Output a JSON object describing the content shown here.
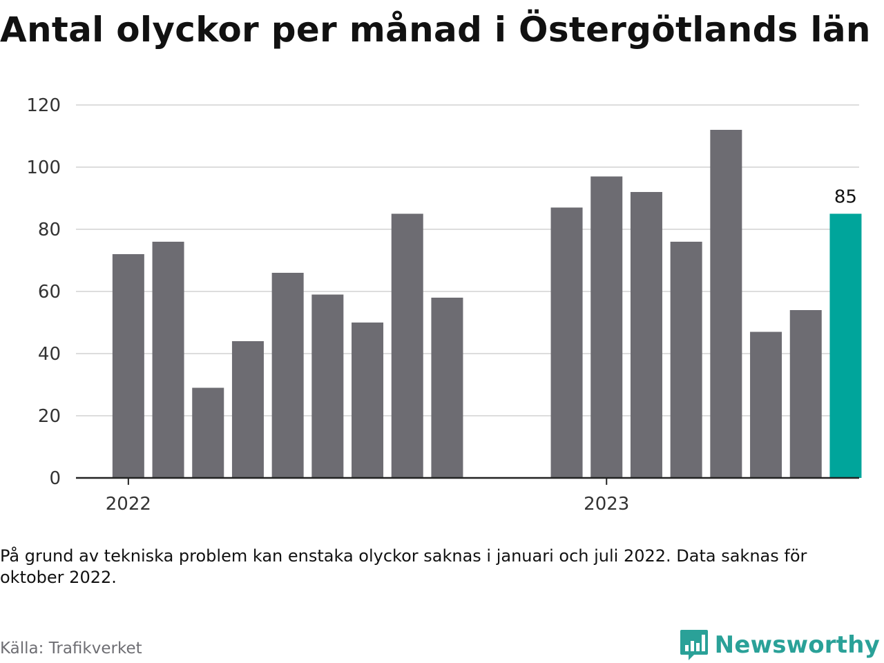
{
  "title": "Antal olyckor per månad i Östergötlands län",
  "note": "På grund av tekniska problem kan enstaka olyckor saknas i januari och juli 2022. Data saknas för oktober 2022.",
  "source": "Källa: Trafikverket",
  "brand": {
    "name": "Newsworthy",
    "logo_icon": "bar-chart-speech-bubble-icon"
  },
  "colors": {
    "bar": "#6d6c72",
    "highlight": "#00a59b",
    "grid": "#dddddd",
    "axis": "#222222"
  },
  "chart_data": {
    "type": "bar",
    "categories": [
      "2022-01",
      "2022-02",
      "2022-03",
      "2022-04",
      "2022-05",
      "2022-06",
      "2022-07",
      "2022-08",
      "2022-09",
      "2022-10",
      "2022-11",
      "2022-12",
      "2023-01",
      "2023-02",
      "2023-03",
      "2023-04",
      "2023-05",
      "2023-06",
      "2023-07"
    ],
    "values": [
      72,
      76,
      29,
      44,
      66,
      59,
      50,
      85,
      58,
      null,
      null,
      87,
      97,
      92,
      76,
      112,
      47,
      54,
      85
    ],
    "highlight_index": 18,
    "data_labels": [
      {
        "index": 18,
        "text": "85"
      }
    ],
    "ylim": [
      0,
      120
    ],
    "yticks": [
      0,
      20,
      40,
      60,
      80,
      100,
      120
    ],
    "xtick_labels": [
      {
        "index": 0,
        "text": "2022"
      },
      {
        "index": 12,
        "text": "2023"
      }
    ],
    "grid": true
  }
}
